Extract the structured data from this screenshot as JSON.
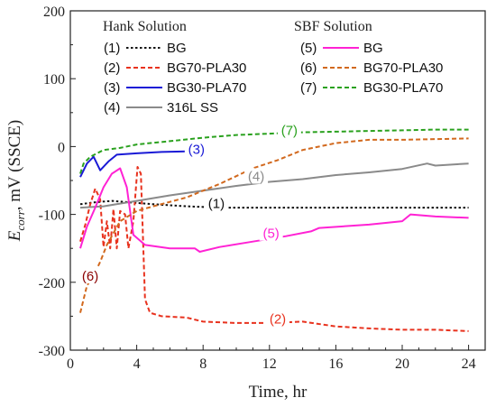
{
  "chart_data": {
    "type": "line",
    "xlabel": "Time, hr",
    "ylabel_main": "E",
    "ylabel_sub": "corr",
    "ylabel_rest": ", mV (SSCE)",
    "xlim": [
      0,
      25
    ],
    "ylim": [
      -300,
      200
    ],
    "xticks": [
      0,
      4,
      8,
      12,
      16,
      20,
      24
    ],
    "yticks": [
      200,
      100,
      0,
      -100,
      -200,
      -300
    ],
    "legend_groups": [
      {
        "heading": "Hank Solution",
        "placement": "top-left"
      },
      {
        "heading": "SBF Solution",
        "placement": "top-right"
      }
    ],
    "series": [
      {
        "id": "1",
        "name": "BG",
        "label": "(1)",
        "color": "#111111",
        "dash": "dotted",
        "group": 0,
        "points": [
          [
            0.6,
            -85
          ],
          [
            1.5,
            -82
          ],
          [
            2.5,
            -80
          ],
          [
            3.5,
            -82
          ],
          [
            5,
            -85
          ],
          [
            7,
            -88
          ],
          [
            9,
            -90
          ],
          [
            12,
            -90
          ],
          [
            16,
            -90
          ],
          [
            20,
            -90
          ],
          [
            24,
            -90
          ]
        ]
      },
      {
        "id": "2",
        "name": "BG70-PLA30",
        "label": "(2)",
        "color": "#e8321e",
        "dash": "dashed",
        "group": 0,
        "points": [
          [
            0.6,
            -140
          ],
          [
            0.9,
            -115
          ],
          [
            1.2,
            -85
          ],
          [
            1.5,
            -62
          ],
          [
            1.8,
            -78
          ],
          [
            2.0,
            -148
          ],
          [
            2.2,
            -110
          ],
          [
            2.4,
            -150
          ],
          [
            2.6,
            -92
          ],
          [
            2.8,
            -150
          ],
          [
            3.0,
            -95
          ],
          [
            3.3,
            -100
          ],
          [
            3.5,
            -150
          ],
          [
            3.8,
            -110
          ],
          [
            4.05,
            -30
          ],
          [
            4.25,
            -40
          ],
          [
            4.5,
            -225
          ],
          [
            4.8,
            -245
          ],
          [
            5.5,
            -250
          ],
          [
            7,
            -252
          ],
          [
            8,
            -258
          ],
          [
            10,
            -260
          ],
          [
            12,
            -260
          ],
          [
            14,
            -258
          ],
          [
            16,
            -265
          ],
          [
            18,
            -268
          ],
          [
            20,
            -270
          ],
          [
            22,
            -270
          ],
          [
            24,
            -272
          ]
        ]
      },
      {
        "id": "3",
        "name": "BG30-PLA70",
        "label": "(3)",
        "color": "#1a1ad6",
        "dash": "solid",
        "group": 0,
        "points": [
          [
            0.6,
            -45
          ],
          [
            1.0,
            -25
          ],
          [
            1.4,
            -15
          ],
          [
            1.8,
            -35
          ],
          [
            2.3,
            -22
          ],
          [
            2.8,
            -12
          ],
          [
            4,
            -10
          ],
          [
            5.5,
            -8
          ],
          [
            7,
            -7
          ]
        ]
      },
      {
        "id": "4",
        "name": "316L SS",
        "label": "(4)",
        "color": "#8a8a8a",
        "dash": "solid",
        "group": 0,
        "points": [
          [
            0.6,
            -90
          ],
          [
            2,
            -88
          ],
          [
            4,
            -80
          ],
          [
            6,
            -72
          ],
          [
            8,
            -65
          ],
          [
            10,
            -58
          ],
          [
            12,
            -52
          ],
          [
            14,
            -48
          ],
          [
            16,
            -42
          ],
          [
            18,
            -38
          ],
          [
            20,
            -33
          ],
          [
            21.5,
            -25
          ],
          [
            22,
            -28
          ],
          [
            24,
            -25
          ]
        ]
      },
      {
        "id": "5",
        "name": "BG",
        "label": "(5)",
        "color": "#ff22d4",
        "dash": "solid",
        "group": 1,
        "points": [
          [
            0.6,
            -150
          ],
          [
            1.0,
            -118
          ],
          [
            1.5,
            -90
          ],
          [
            2.0,
            -60
          ],
          [
            2.5,
            -40
          ],
          [
            3.0,
            -32
          ],
          [
            3.4,
            -60
          ],
          [
            3.8,
            -130
          ],
          [
            4.5,
            -145
          ],
          [
            6,
            -150
          ],
          [
            7.5,
            -150
          ],
          [
            7.8,
            -155
          ],
          [
            9,
            -148
          ],
          [
            11,
            -140
          ],
          [
            13,
            -132
          ],
          [
            14.5,
            -125
          ],
          [
            15,
            -120
          ],
          [
            18,
            -115
          ],
          [
            20,
            -110
          ],
          [
            20.5,
            -100
          ],
          [
            22,
            -103
          ],
          [
            24,
            -105
          ]
        ]
      },
      {
        "id": "6",
        "name": "BG70-PLA30",
        "label": "(6)",
        "color": "#d2691e",
        "dash": "dashed",
        "group": 1,
        "points": [
          [
            0.6,
            -245
          ],
          [
            1.0,
            -205
          ],
          [
            1.4,
            -190
          ],
          [
            1.8,
            -170
          ],
          [
            2.2,
            -145
          ],
          [
            3.0,
            -110
          ],
          [
            4,
            -95
          ],
          [
            5,
            -88
          ],
          [
            7,
            -75
          ],
          [
            9,
            -55
          ],
          [
            11,
            -32
          ],
          [
            12.5,
            -20
          ],
          [
            14,
            -5
          ],
          [
            16,
            5
          ],
          [
            18,
            10
          ],
          [
            20,
            10
          ],
          [
            24,
            12
          ]
        ]
      },
      {
        "id": "7",
        "name": "BG30-PLA70",
        "label": "(7)",
        "color": "#2aa11e",
        "dash": "dashed",
        "group": 1,
        "points": [
          [
            0.6,
            -40
          ],
          [
            0.8,
            -25
          ],
          [
            1.2,
            -15
          ],
          [
            2,
            -5
          ],
          [
            3,
            -2
          ],
          [
            4,
            3
          ],
          [
            6,
            8
          ],
          [
            8,
            13
          ],
          [
            10,
            17
          ],
          [
            12,
            19
          ],
          [
            14,
            21
          ],
          [
            16,
            22
          ],
          [
            18,
            23
          ],
          [
            20,
            24
          ],
          [
            22,
            25
          ],
          [
            24,
            25
          ]
        ]
      }
    ],
    "annotations": [
      {
        "text": "(1)",
        "x": 8.8,
        "y": -88,
        "color": "#111111"
      },
      {
        "text": "(2)",
        "x": 12.5,
        "y": -258,
        "color": "#e8321e"
      },
      {
        "text": "(3)",
        "x": 7.6,
        "y": -8,
        "color": "#1a1ad6"
      },
      {
        "text": "(4)",
        "x": 11.2,
        "y": -48,
        "color": "#8a8a8a"
      },
      {
        "text": "(5)",
        "x": 12.1,
        "y": -132,
        "color": "#ff22d4"
      },
      {
        "text": "(6)",
        "x": 1.2,
        "y": -195,
        "color": "#8b0000"
      },
      {
        "text": "(7)",
        "x": 13.2,
        "y": 20,
        "color": "#2aa11e"
      }
    ]
  }
}
